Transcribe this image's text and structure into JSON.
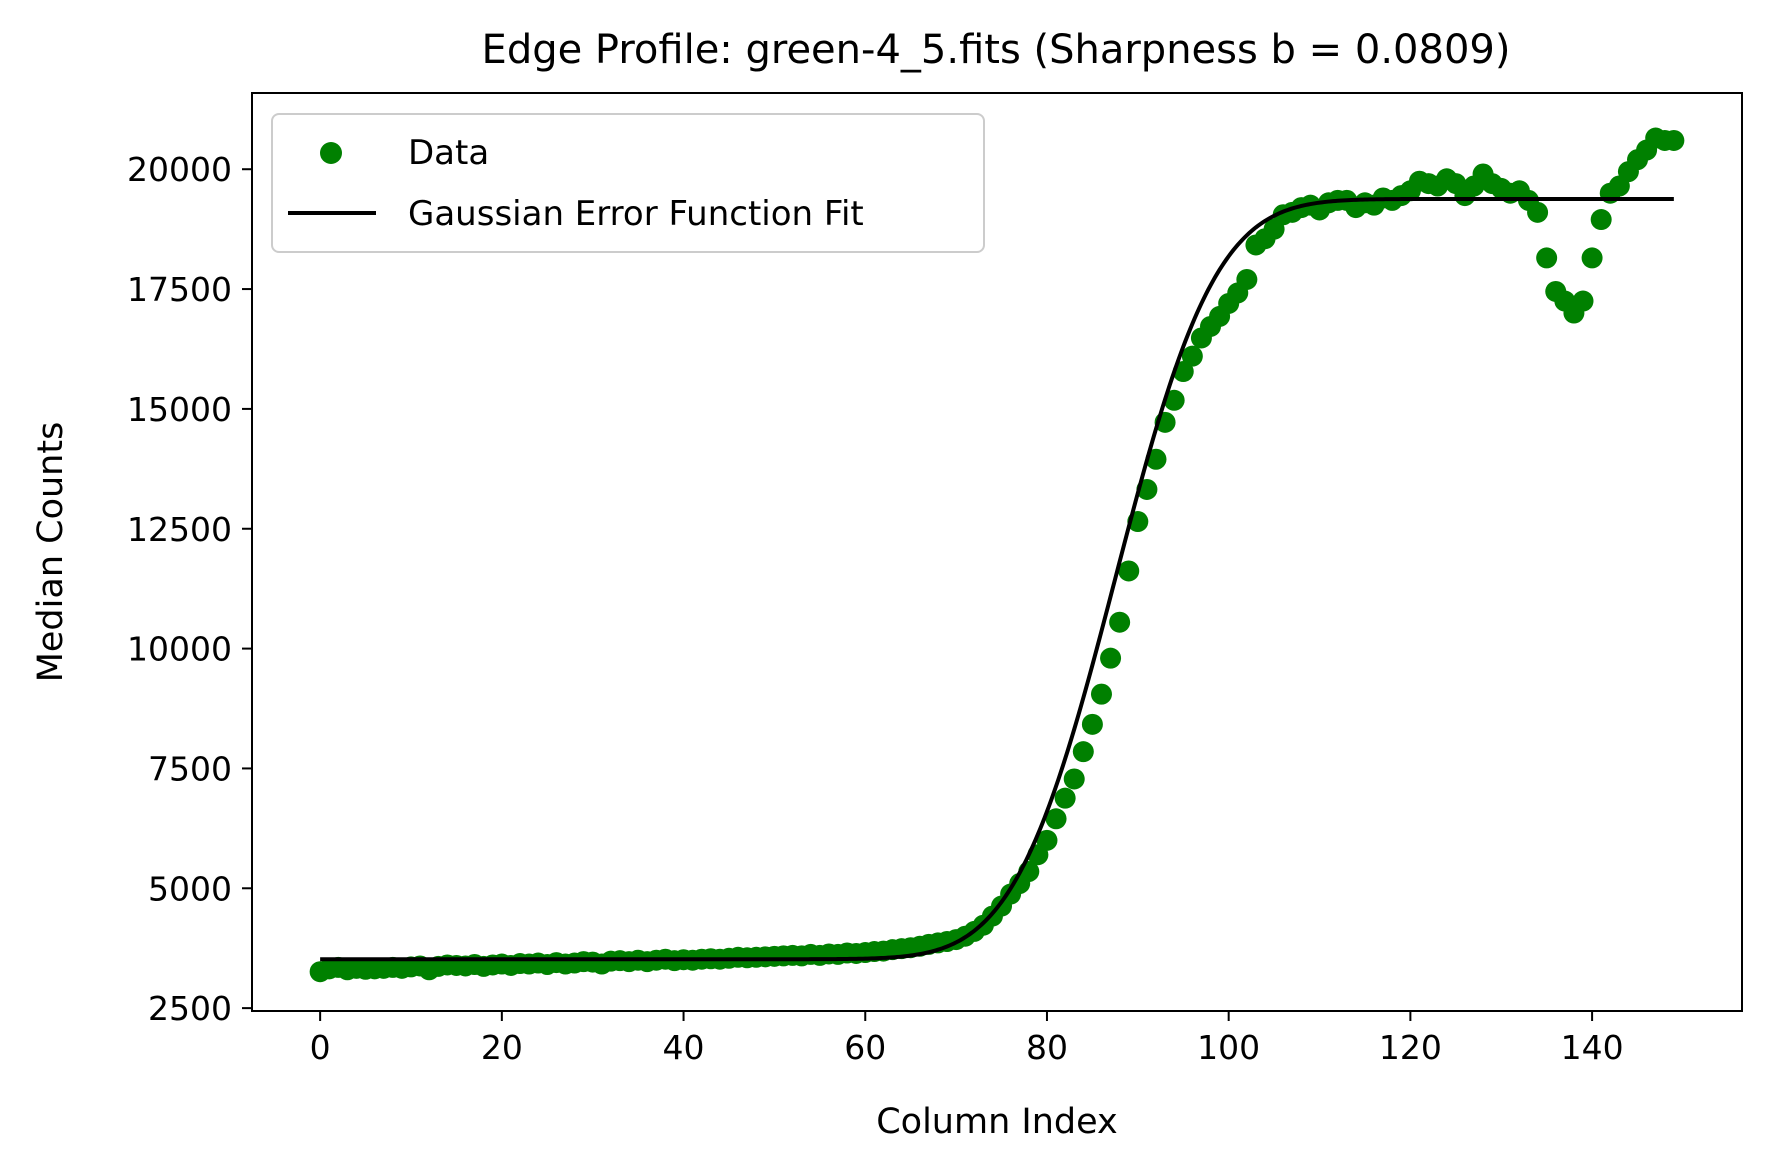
{
  "chart_data": {
    "type": "scatter",
    "title": "Edge Profile: green-4_5.fits (Sharpness b = 0.0809)",
    "xlabel": "Column Index",
    "ylabel": "Median Counts",
    "xlim": [
      -7.5,
      156.5
    ],
    "ylim": [
      2440,
      21590
    ],
    "xticks": [
      0,
      20,
      40,
      60,
      80,
      100,
      120,
      140
    ],
    "yticks": [
      2500,
      5000,
      7500,
      10000,
      12500,
      15000,
      17500,
      20000
    ],
    "grid": false,
    "legend_position": "top-left",
    "colors": {
      "data": "#008000",
      "fit": "#000000"
    },
    "series": [
      {
        "name": "Data",
        "kind": "scatter",
        "x": [
          0,
          1,
          2,
          3,
          4,
          5,
          6,
          7,
          8,
          9,
          10,
          11,
          12,
          13,
          14,
          15,
          16,
          17,
          18,
          19,
          20,
          21,
          22,
          23,
          24,
          25,
          26,
          27,
          28,
          29,
          30,
          31,
          32,
          33,
          34,
          35,
          36,
          37,
          38,
          39,
          40,
          41,
          42,
          43,
          44,
          45,
          46,
          47,
          48,
          49,
          50,
          51,
          52,
          53,
          54,
          55,
          56,
          57,
          58,
          59,
          60,
          61,
          62,
          63,
          64,
          65,
          66,
          67,
          68,
          69,
          70,
          71,
          72,
          73,
          74,
          75,
          76,
          77,
          78,
          79,
          80,
          81,
          82,
          83,
          84,
          85,
          86,
          87,
          88,
          89,
          90,
          91,
          92,
          93,
          94,
          95,
          96,
          97,
          98,
          99,
          100,
          101,
          102,
          103,
          104,
          105,
          106,
          107,
          108,
          109,
          110,
          111,
          112,
          113,
          114,
          115,
          116,
          117,
          118,
          119,
          120,
          121,
          122,
          123,
          124,
          125,
          126,
          127,
          128,
          129,
          130,
          131,
          132,
          133,
          134,
          135,
          136,
          137,
          138,
          139,
          140,
          141,
          142,
          143,
          144,
          145,
          146,
          147,
          148,
          149
        ],
        "y": [
          3260,
          3320,
          3350,
          3300,
          3330,
          3310,
          3320,
          3330,
          3350,
          3330,
          3360,
          3380,
          3300,
          3370,
          3400,
          3390,
          3380,
          3410,
          3370,
          3400,
          3420,
          3390,
          3430,
          3420,
          3440,
          3410,
          3450,
          3420,
          3440,
          3470,
          3460,
          3420,
          3480,
          3490,
          3470,
          3500,
          3470,
          3500,
          3520,
          3490,
          3510,
          3500,
          3520,
          3530,
          3520,
          3540,
          3560,
          3550,
          3560,
          3570,
          3580,
          3590,
          3600,
          3590,
          3620,
          3600,
          3630,
          3620,
          3650,
          3640,
          3660,
          3680,
          3690,
          3720,
          3740,
          3760,
          3790,
          3830,
          3860,
          3890,
          3930,
          4000,
          4100,
          4230,
          4420,
          4630,
          4880,
          5100,
          5350,
          5700,
          6000,
          6450,
          6880,
          7280,
          7850,
          8420,
          9050,
          9800,
          10550,
          11620,
          12650,
          13320,
          13950,
          14720,
          15180,
          15780,
          16100,
          16480,
          16720,
          16930,
          17200,
          17420,
          17700,
          18420,
          18550,
          18750,
          19050,
          19100,
          19200,
          19250,
          19150,
          19300,
          19350,
          19350,
          19200,
          19300,
          19250,
          19400,
          19350,
          19450,
          19550,
          19750,
          19700,
          19650,
          19800,
          19700,
          19450,
          19650,
          19900,
          19700,
          19600,
          19500,
          19550,
          19350,
          19100,
          18150,
          17450,
          17250,
          17000,
          17250,
          18150,
          18950,
          19500,
          19650,
          19950,
          20200,
          20400,
          20650,
          20600,
          20600
        ]
      },
      {
        "name": "Gaussian Error Function Fit",
        "kind": "line",
        "model": {
          "low": 3520,
          "high": 19380,
          "center": 87.5,
          "sigma": 8.7
        },
        "x_range": [
          0,
          149
        ]
      }
    ]
  }
}
